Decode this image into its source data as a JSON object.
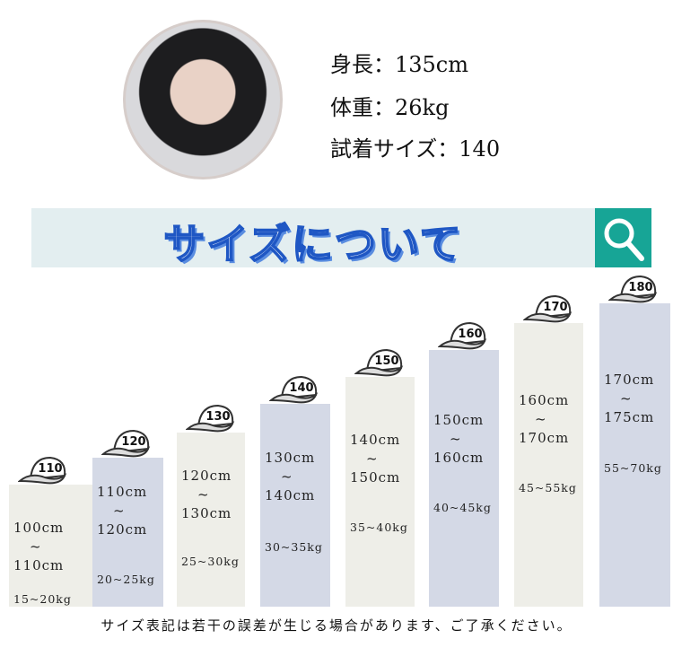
{
  "profile": {
    "height": "身長：135cm",
    "weight": "体重：26kg",
    "size": "試着サイズ：140"
  },
  "banner": {
    "title": "サイズについて",
    "icon": "search-icon",
    "accent": "#17a596"
  },
  "sizes": [
    {
      "size": "110",
      "height_from": "100cm",
      "height_to": "110cm",
      "weight": "15~20kg"
    },
    {
      "size": "120",
      "height_from": "110cm",
      "height_to": "120cm",
      "weight": "20~25kg"
    },
    {
      "size": "130",
      "height_from": "120cm",
      "height_to": "130cm",
      "weight": "25~30kg"
    },
    {
      "size": "140",
      "height_from": "130cm",
      "height_to": "140cm",
      "weight": "30~35kg"
    },
    {
      "size": "150",
      "height_from": "140cm",
      "height_to": "150cm",
      "weight": "35~40kg"
    },
    {
      "size": "160",
      "height_from": "150cm",
      "height_to": "160cm",
      "weight": "40~45kg"
    },
    {
      "size": "170",
      "height_from": "160cm",
      "height_to": "170cm",
      "weight": "45~55kg"
    },
    {
      "size": "180",
      "height_from": "170cm",
      "height_to": "175cm",
      "weight": "55~70kg"
    }
  ],
  "tilde": "~",
  "note": "サイズ表記は若干の誤差が生じる場合があります、ご了承ください。"
}
